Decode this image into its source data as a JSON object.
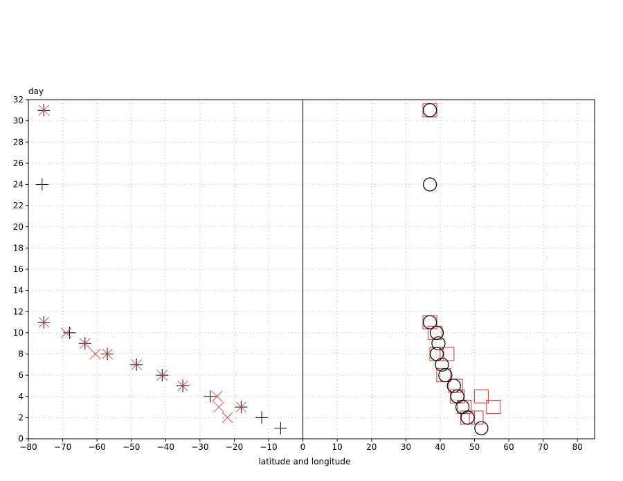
{
  "chart_data": {
    "type": "scatter",
    "title": "",
    "xlabel": "latitude and longitude",
    "ylabel": "day",
    "xlim": [
      -80,
      85
    ],
    "ylim": [
      0,
      32
    ],
    "x_ticks": [
      -80,
      -70,
      -60,
      -50,
      -40,
      -30,
      -20,
      -10,
      0,
      10,
      20,
      30,
      40,
      50,
      60,
      70,
      80
    ],
    "y_ticks": [
      0,
      2,
      4,
      6,
      8,
      10,
      12,
      14,
      16,
      18,
      20,
      22,
      24,
      26,
      28,
      30,
      32
    ],
    "grid": true,
    "reference_line_x": 0,
    "series": [
      {
        "marker": "plus",
        "color": "#000000",
        "points": [
          {
            "x": -75.5,
            "y": 31
          },
          {
            "x": -76,
            "y": 24
          },
          {
            "x": -75.5,
            "y": 11
          },
          {
            "x": -68,
            "y": 10
          },
          {
            "x": -63.5,
            "y": 9
          },
          {
            "x": -57,
            "y": 8
          },
          {
            "x": -48.5,
            "y": 7
          },
          {
            "x": -41,
            "y": 6
          },
          {
            "x": -35,
            "y": 5
          },
          {
            "x": -27,
            "y": 4
          },
          {
            "x": -18,
            "y": 3
          },
          {
            "x": -12,
            "y": 2
          },
          {
            "x": -6.5,
            "y": 1
          }
        ]
      },
      {
        "marker": "cross",
        "color": "#e05050",
        "points": [
          {
            "x": -75.5,
            "y": 31
          },
          {
            "x": -75.5,
            "y": 11
          },
          {
            "x": -69,
            "y": 10
          },
          {
            "x": -63.5,
            "y": 9
          },
          {
            "x": -60.5,
            "y": 8
          },
          {
            "x": -57,
            "y": 8
          },
          {
            "x": -48.5,
            "y": 7
          },
          {
            "x": -41,
            "y": 6
          },
          {
            "x": -35,
            "y": 5
          },
          {
            "x": -25,
            "y": 4
          },
          {
            "x": -24.5,
            "y": 3
          },
          {
            "x": -18,
            "y": 3
          },
          {
            "x": -22,
            "y": 2
          }
        ]
      },
      {
        "marker": "square",
        "color": "#e05050",
        "points": [
          {
            "x": 37,
            "y": 31
          },
          {
            "x": 37,
            "y": 11
          },
          {
            "x": 38.5,
            "y": 10
          },
          {
            "x": 39,
            "y": 8
          },
          {
            "x": 42,
            "y": 8
          },
          {
            "x": 41,
            "y": 6
          },
          {
            "x": 44.5,
            "y": 5
          },
          {
            "x": 45,
            "y": 4
          },
          {
            "x": 52,
            "y": 4
          },
          {
            "x": 47,
            "y": 3
          },
          {
            "x": 55.5,
            "y": 3
          },
          {
            "x": 50.5,
            "y": 2
          },
          {
            "x": 48,
            "y": 2
          }
        ]
      },
      {
        "marker": "circle",
        "color": "#000000",
        "points": [
          {
            "x": 37,
            "y": 31
          },
          {
            "x": 37,
            "y": 24
          },
          {
            "x": 37,
            "y": 11
          },
          {
            "x": 39,
            "y": 10
          },
          {
            "x": 39.5,
            "y": 9
          },
          {
            "x": 39,
            "y": 8
          },
          {
            "x": 40.5,
            "y": 7
          },
          {
            "x": 41.5,
            "y": 6
          },
          {
            "x": 44,
            "y": 5
          },
          {
            "x": 45,
            "y": 4
          },
          {
            "x": 46.5,
            "y": 3
          },
          {
            "x": 48,
            "y": 2
          },
          {
            "x": 52,
            "y": 1
          }
        ]
      }
    ]
  }
}
